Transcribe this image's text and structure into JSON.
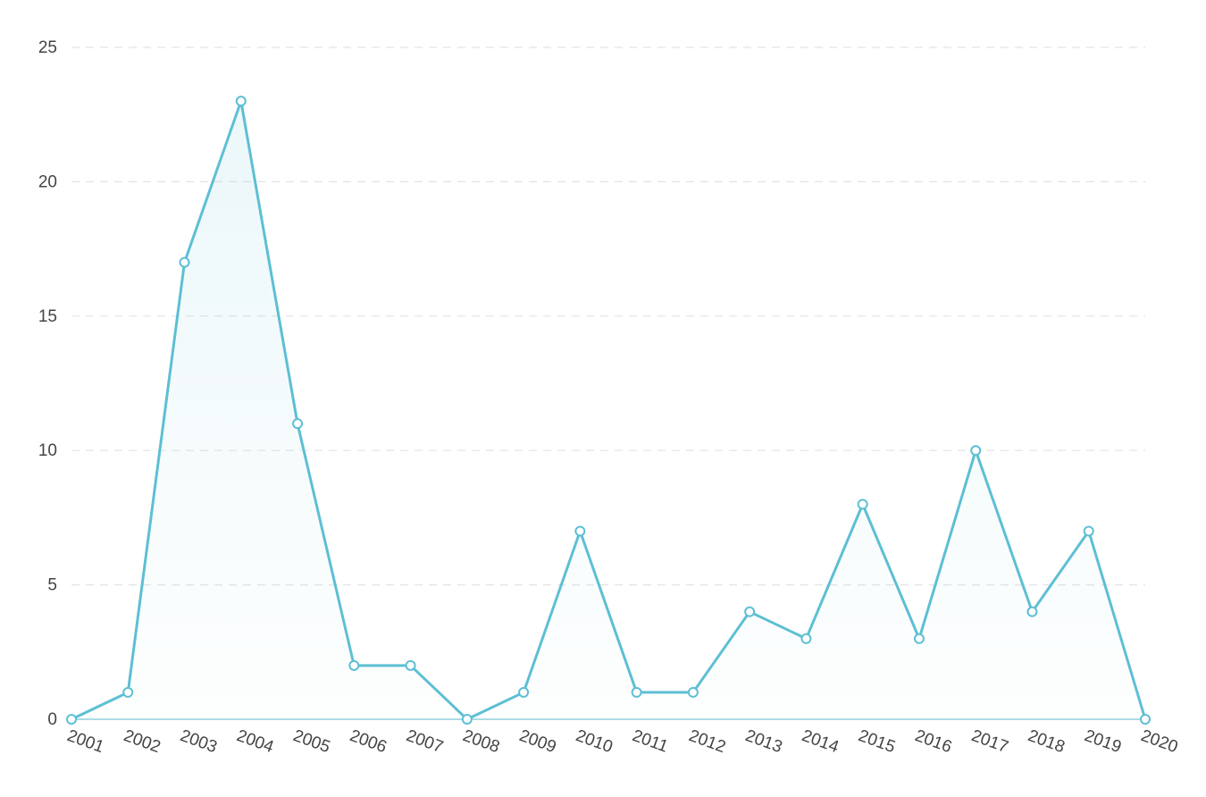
{
  "chart_data": {
    "type": "area",
    "title": "",
    "xlabel": "",
    "ylabel": "",
    "categories": [
      "2001",
      "2002",
      "2003",
      "2004",
      "2005",
      "2006",
      "2007",
      "2008",
      "2009",
      "2010",
      "2011",
      "2012",
      "2013",
      "2014",
      "2015",
      "2016",
      "2017",
      "2018",
      "2019",
      "2020"
    ],
    "series": [
      {
        "values": [
          0,
          1,
          17,
          23,
          11,
          2,
          2,
          0,
          1,
          7,
          1,
          1,
          4,
          3,
          8,
          3,
          10,
          4,
          7,
          0
        ]
      }
    ],
    "ylim": [
      0,
      25
    ],
    "yticks": [
      "0",
      "5",
      "10",
      "15",
      "20",
      "25"
    ],
    "grid": true,
    "colors": {
      "line": "#5dbfd4",
      "marker_fill": "#ffffff",
      "grid": "#e3e3e3",
      "axis": "#8fd0de",
      "text": "#444444"
    }
  }
}
